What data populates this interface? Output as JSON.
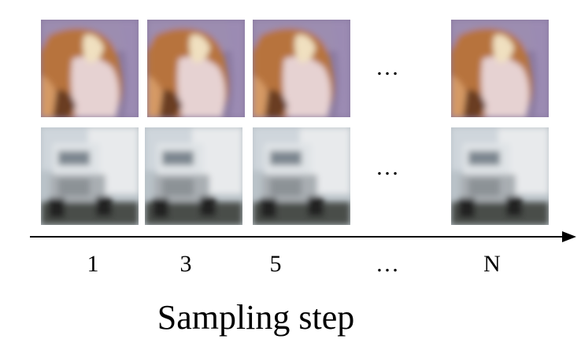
{
  "row_ellipses": [
    "…",
    "…"
  ],
  "steps": [
    "1",
    "3",
    "5",
    "…",
    "N"
  ],
  "caption": "Sampling step"
}
